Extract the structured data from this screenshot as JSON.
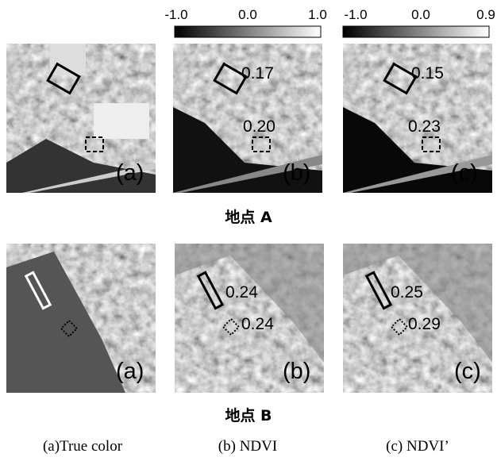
{
  "colorbars": [
    {
      "labels": [
        "-1.0",
        "0.0",
        "1.0"
      ]
    },
    {
      "labels": [
        "-1.0",
        "0.0",
        "0.9"
      ]
    }
  ],
  "sites": [
    {
      "title": "地点 A",
      "panels": [
        {
          "label": "(a)"
        },
        {
          "label": "(b)",
          "annotations": [
            "0.17",
            "0.20"
          ]
        },
        {
          "label": "(c)",
          "annotations": [
            "0.15",
            "0.23"
          ]
        }
      ]
    },
    {
      "title": "地点 B",
      "panels": [
        {
          "label": "(a)"
        },
        {
          "label": "(b)",
          "annotations": [
            "0.24",
            "0.24"
          ]
        },
        {
          "label": "(c)",
          "annotations": [
            "0.25",
            "0.29"
          ]
        }
      ]
    }
  ],
  "captions": [
    "(a)True color",
    "(b) NDVI",
    "(c) NDVI’"
  ]
}
